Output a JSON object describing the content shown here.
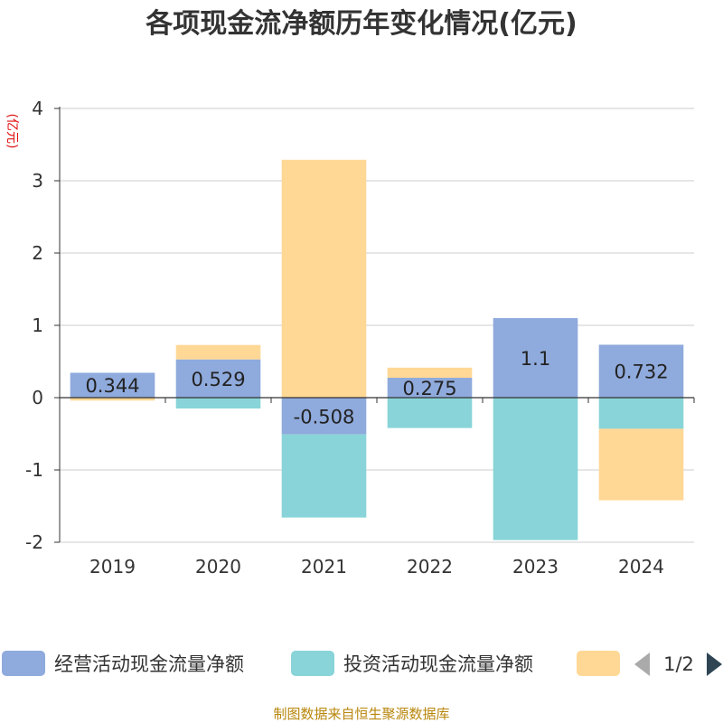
{
  "chart_data": {
    "type": "bar",
    "stacked": true,
    "title": "各项现金流净额历年变化情况(亿元)",
    "ylabel": "(亿元)",
    "xlabel": "",
    "ylim": [
      -2,
      4
    ],
    "yticks": [
      4,
      3,
      2,
      1,
      0,
      -1,
      -2
    ],
    "grid": true,
    "categories": [
      "2019",
      "2020",
      "2021",
      "2022",
      "2023",
      "2024"
    ],
    "series": [
      {
        "name": "经营活动现金流量净额",
        "color": "#8faadc",
        "values": [
          0.344,
          0.529,
          -0.508,
          0.275,
          1.1,
          0.732
        ],
        "labels": [
          "0.344",
          "0.529",
          "-0.508",
          "0.275",
          "1.1",
          "0.732"
        ]
      },
      {
        "name": "投资活动现金流量净额",
        "color": "#88d4d8",
        "values": [
          0.0,
          -0.15,
          -1.15,
          -0.42,
          -1.97,
          -0.43
        ]
      },
      {
        "name": "",
        "color": "#ffd896",
        "values": [
          -0.04,
          0.2,
          3.29,
          0.14,
          0.0,
          -0.99
        ]
      }
    ],
    "legend": {
      "position": "bottom",
      "page": "1/2"
    },
    "source": "制图数据来自恒生聚源数据库"
  }
}
